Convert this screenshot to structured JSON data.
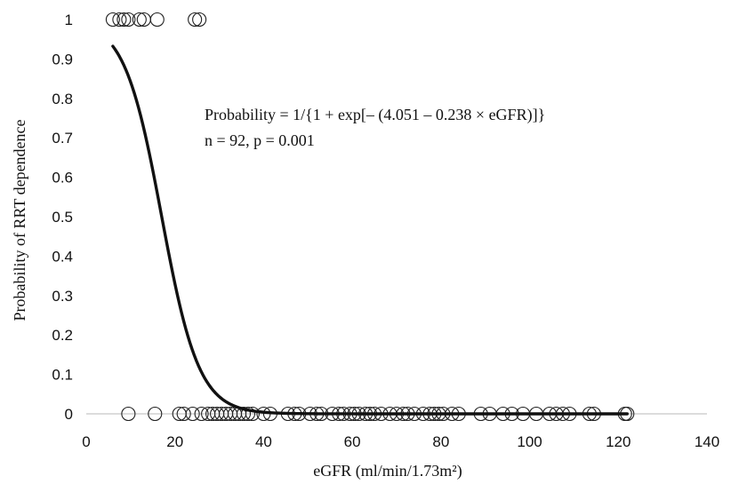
{
  "chart_data": {
    "type": "scatter",
    "title": "",
    "xlabel": "eGFR (ml/min/1.73m²)",
    "ylabel": "Probability of RRT dependence",
    "xlim": [
      0,
      140
    ],
    "ylim": [
      0,
      1
    ],
    "x_ticks": [
      0,
      20,
      40,
      60,
      80,
      100,
      120,
      140
    ],
    "y_ticks": [
      0,
      0.1,
      0.2,
      0.3,
      0.4,
      0.5,
      0.6,
      0.7,
      0.8,
      0.9,
      1
    ],
    "x_tick_labels": [
      "0",
      "20",
      "40",
      "60",
      "80",
      "100",
      "120",
      "140"
    ],
    "y_tick_labels": [
      "0",
      "0.1",
      "0.2",
      "0.3",
      "0.4",
      "0.5",
      "0.6",
      "0.7",
      "0.8",
      "0.9",
      "1"
    ],
    "grid": false,
    "annotations": [
      "Probability = 1/{1 + exp[– (4.051 – 0.238 × eGFR)]}",
      "n = 92, p = 0.001"
    ],
    "series": [
      {
        "type": "scatter",
        "marker": "open-circle",
        "points": [
          {
            "x": 6,
            "y": 1
          },
          {
            "x": 7.5,
            "y": 1
          },
          {
            "x": 8.5,
            "y": 1
          },
          {
            "x": 9.5,
            "y": 1
          },
          {
            "x": 12,
            "y": 1
          },
          {
            "x": 13,
            "y": 1
          },
          {
            "x": 16,
            "y": 1
          },
          {
            "x": 24.5,
            "y": 1
          },
          {
            "x": 25.5,
            "y": 1
          },
          {
            "x": 9.5,
            "y": 0
          },
          {
            "x": 15.5,
            "y": 0
          },
          {
            "x": 21,
            "y": 0
          },
          {
            "x": 22,
            "y": 0
          },
          {
            "x": 24,
            "y": 0
          },
          {
            "x": 26,
            "y": 0
          },
          {
            "x": 27.5,
            "y": 0
          },
          {
            "x": 28.5,
            "y": 0
          },
          {
            "x": 29.5,
            "y": 0
          },
          {
            "x": 30.5,
            "y": 0
          },
          {
            "x": 31.5,
            "y": 0
          },
          {
            "x": 32.5,
            "y": 0
          },
          {
            "x": 33.5,
            "y": 0
          },
          {
            "x": 34.5,
            "y": 0
          },
          {
            "x": 35.5,
            "y": 0
          },
          {
            "x": 36.5,
            "y": 0
          },
          {
            "x": 37.5,
            "y": 0
          },
          {
            "x": 40,
            "y": 0
          },
          {
            "x": 41.5,
            "y": 0
          },
          {
            "x": 45.5,
            "y": 0
          },
          {
            "x": 47,
            "y": 0
          },
          {
            "x": 48,
            "y": 0
          },
          {
            "x": 50.5,
            "y": 0
          },
          {
            "x": 52,
            "y": 0
          },
          {
            "x": 53,
            "y": 0
          },
          {
            "x": 55.5,
            "y": 0
          },
          {
            "x": 57,
            "y": 0
          },
          {
            "x": 58,
            "y": 0
          },
          {
            "x": 59.5,
            "y": 0
          },
          {
            "x": 60.5,
            "y": 0
          },
          {
            "x": 61.5,
            "y": 0
          },
          {
            "x": 63,
            "y": 0
          },
          {
            "x": 64,
            "y": 0
          },
          {
            "x": 65,
            "y": 0
          },
          {
            "x": 66.5,
            "y": 0
          },
          {
            "x": 68.5,
            "y": 0
          },
          {
            "x": 70,
            "y": 0
          },
          {
            "x": 71.5,
            "y": 0
          },
          {
            "x": 72.5,
            "y": 0
          },
          {
            "x": 74,
            "y": 0
          },
          {
            "x": 76,
            "y": 0
          },
          {
            "x": 77.5,
            "y": 0
          },
          {
            "x": 78.5,
            "y": 0
          },
          {
            "x": 79.5,
            "y": 0
          },
          {
            "x": 80.5,
            "y": 0
          },
          {
            "x": 82.5,
            "y": 0
          },
          {
            "x": 84,
            "y": 0
          },
          {
            "x": 89,
            "y": 0
          },
          {
            "x": 91,
            "y": 0
          },
          {
            "x": 94,
            "y": 0
          },
          {
            "x": 96,
            "y": 0
          },
          {
            "x": 98.5,
            "y": 0
          },
          {
            "x": 101.5,
            "y": 0
          },
          {
            "x": 104.5,
            "y": 0
          },
          {
            "x": 106,
            "y": 0
          },
          {
            "x": 107.5,
            "y": 0
          },
          {
            "x": 109,
            "y": 0
          },
          {
            "x": 113.5,
            "y": 0
          },
          {
            "x": 114.5,
            "y": 0
          },
          {
            "x": 121.5,
            "y": 0
          },
          {
            "x": 122,
            "y": 0
          }
        ]
      },
      {
        "type": "line",
        "fit": "logistic",
        "intercept": 4.051,
        "slope": -0.238,
        "x_range": [
          6,
          122
        ]
      }
    ]
  }
}
